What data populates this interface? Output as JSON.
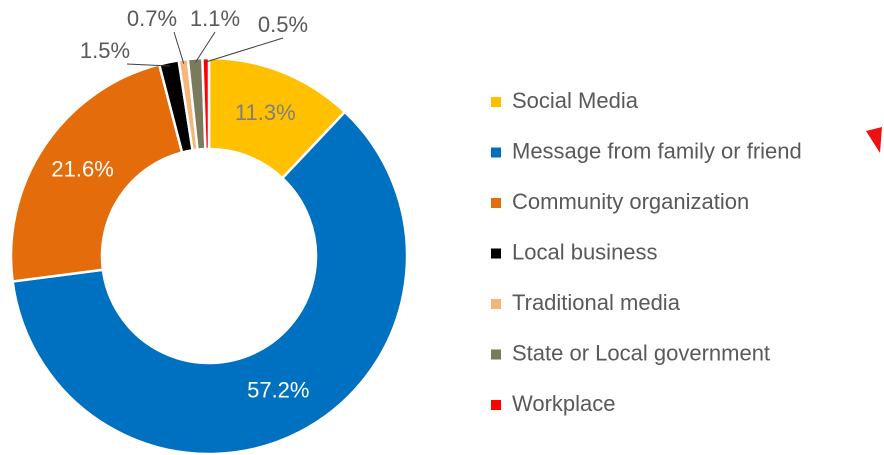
{
  "chart_data": {
    "type": "donut",
    "categories": [
      "Social Media",
      "Message from family or friend",
      "Community organization",
      "Local business",
      "Traditional media",
      "State or Local government",
      "Workplace"
    ],
    "values": [
      11.3,
      57.2,
      21.6,
      1.5,
      0.7,
      1.1,
      0.5
    ],
    "value_labels": [
      "11.3%",
      "57.2%",
      "21.6%",
      "1.5%",
      "0.7%",
      "1.1%",
      "0.5%"
    ],
    "colors": [
      "#FFC000",
      "#0070C0",
      "#E46C0A",
      "#000000",
      "#F4B67A",
      "#7A7A5C",
      "#FF0000"
    ],
    "legend": "right"
  }
}
